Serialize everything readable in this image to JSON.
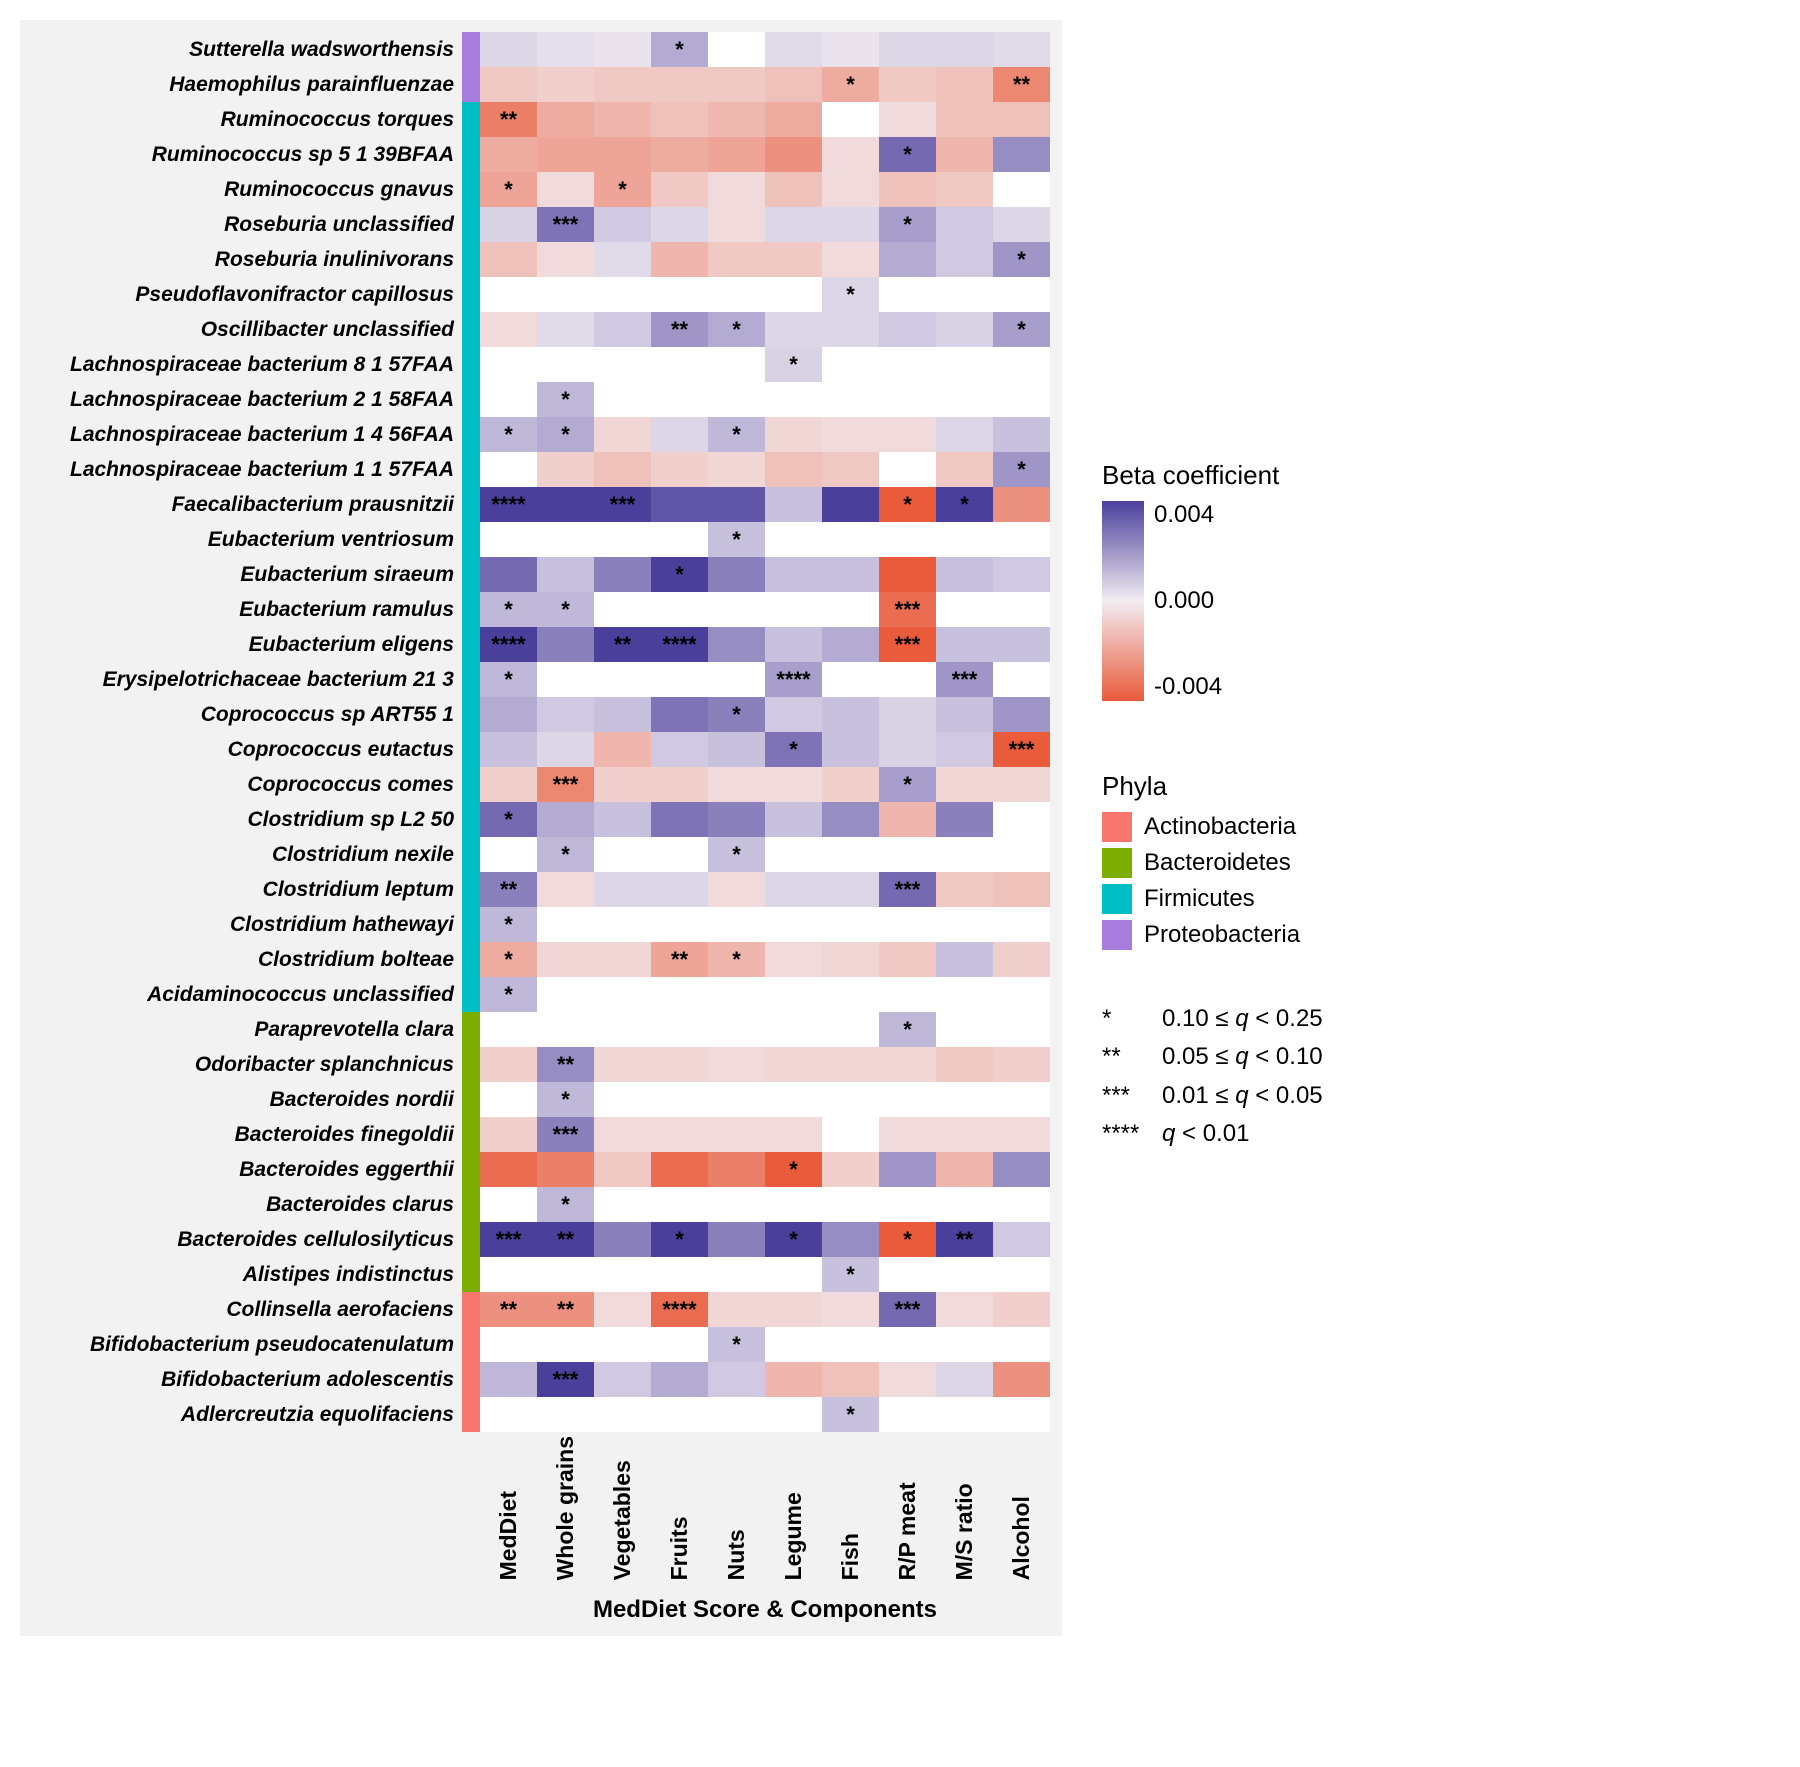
{
  "x_axis_title": "MedDiet Score & Components",
  "columns": [
    "MedDiet",
    "Whole grains",
    "Vegetables",
    "Fruits",
    "Nuts",
    "Legume",
    "Fish",
    "R/P meat",
    "M/S ratio",
    "Alcohol"
  ],
  "phyla": {
    "Actinobacteria": "#f8766d",
    "Bacteroidetes": "#7cae00",
    "Firmicutes": "#00bfc4",
    "Proteobacteria": "#a87cdd"
  },
  "beta_legend": {
    "title": "Beta coefficient",
    "min": -0.004,
    "mid": 0.0,
    "max": 0.004,
    "ticks": [
      "0.004",
      "0.000",
      "-0.004"
    ],
    "pos_color": "#4b3f9c",
    "zero_color": "#f2ecf2",
    "neg_color": "#e95b3a"
  },
  "phyla_legend_title": "Phyla",
  "sig_legend": [
    {
      "stars": "*",
      "text": "0.10 ≤ q < 0.25"
    },
    {
      "stars": "**",
      "text": "0.05 ≤ q < 0.10"
    },
    {
      "stars": "***",
      "text": "0.01 ≤ q < 0.05"
    },
    {
      "stars": "****",
      "text": "q < 0.01"
    }
  ],
  "rows": [
    {
      "label": "Sutterella wadsworthensis",
      "phylum": "Proteobacteria",
      "beta": [
        0.0005,
        0.0003,
        0.0002,
        0.0015,
        null,
        0.0004,
        0.0002,
        0.0005,
        0.0005,
        0.0004
      ],
      "sig": [
        "",
        "",
        "",
        "*",
        "",
        "",
        "",
        "",
        "",
        ""
      ]
    },
    {
      "label": "Haemophilus parainfluenzae",
      "phylum": "Proteobacteria",
      "beta": [
        -0.001,
        -0.0008,
        -0.001,
        -0.001,
        -0.001,
        -0.0012,
        -0.0018,
        -0.001,
        -0.0012,
        -0.0028
      ],
      "sig": [
        "",
        "",
        "",
        "",
        "",
        "",
        "*",
        "",
        "",
        "**"
      ]
    },
    {
      "label": "Ruminococcus torques",
      "phylum": "Firmicutes",
      "beta": [
        -0.003,
        -0.0018,
        -0.0015,
        -0.0012,
        -0.0014,
        -0.0018,
        null,
        -0.0005,
        -0.0012,
        -0.0012
      ],
      "sig": [
        "**",
        "",
        "",
        "",
        "",
        "",
        "",
        "",
        "",
        ""
      ]
    },
    {
      "label": "Ruminococcus sp 5 1 39BFAA",
      "phylum": "Firmicutes",
      "beta": [
        -0.0018,
        -0.002,
        -0.002,
        -0.0018,
        -0.002,
        -0.0025,
        -0.0005,
        0.003,
        -0.0015,
        0.0022
      ],
      "sig": [
        "",
        "",
        "",
        "",
        "",
        "",
        "",
        "*",
        "",
        ""
      ]
    },
    {
      "label": "Ruminococcus gnavus",
      "phylum": "Firmicutes",
      "beta": [
        -0.002,
        -0.0005,
        -0.002,
        -0.001,
        -0.0005,
        -0.0012,
        -0.0005,
        -0.0012,
        -0.001,
        null
      ],
      "sig": [
        "*",
        "",
        "*",
        "",
        "",
        "",
        "",
        "",
        "",
        ""
      ]
    },
    {
      "label": "Roseburia unclassified",
      "phylum": "Firmicutes",
      "beta": [
        0.0006,
        0.0028,
        0.0008,
        0.0005,
        -0.0005,
        0.0005,
        0.0005,
        0.0018,
        0.0008,
        0.0005
      ],
      "sig": [
        "",
        "***",
        "",
        "",
        "",
        "",
        "",
        "*",
        "",
        ""
      ]
    },
    {
      "label": "Roseburia inulinivorans",
      "phylum": "Firmicutes",
      "beta": [
        -0.0012,
        -0.0005,
        0.0004,
        -0.0015,
        -0.001,
        -0.001,
        -0.0005,
        0.0015,
        0.0008,
        0.002
      ],
      "sig": [
        "",
        "",
        "",
        "",
        "",
        "",
        "",
        "",
        "",
        "*"
      ]
    },
    {
      "label": "Pseudoflavonifractor capillosus",
      "phylum": "Firmicutes",
      "beta": [
        null,
        null,
        null,
        null,
        null,
        null,
        0.0005,
        null,
        null,
        null
      ],
      "sig": [
        "",
        "",
        "",
        "",
        "",
        "",
        "*",
        "",
        "",
        ""
      ]
    },
    {
      "label": "Oscillibacter unclassified",
      "phylum": "Firmicutes",
      "beta": [
        -0.0005,
        0.0004,
        0.0008,
        0.002,
        0.0015,
        0.0005,
        0.0005,
        0.0008,
        0.0006,
        0.0018
      ],
      "sig": [
        "",
        "",
        "",
        "**",
        "*",
        "",
        "",
        "",
        "",
        "*"
      ]
    },
    {
      "label": "Lachnospiraceae bacterium 8 1 57FAA",
      "phylum": "Firmicutes",
      "beta": [
        null,
        null,
        null,
        null,
        null,
        0.0006,
        null,
        null,
        null,
        null
      ],
      "sig": [
        "",
        "",
        "",
        "",
        "",
        "*",
        "",
        "",
        "",
        ""
      ]
    },
    {
      "label": "Lachnospiraceae bacterium 2 1 58FAA",
      "phylum": "Firmicutes",
      "beta": [
        null,
        0.0012,
        null,
        null,
        null,
        null,
        null,
        null,
        null,
        null
      ],
      "sig": [
        "",
        "*",
        "",
        "",
        "",
        "",
        "",
        "",
        "",
        ""
      ]
    },
    {
      "label": "Lachnospiraceae bacterium 1 4 56FAA",
      "phylum": "Firmicutes",
      "beta": [
        0.0012,
        0.0015,
        -0.0006,
        0.0005,
        0.0012,
        -0.0006,
        -0.0005,
        -0.0005,
        0.0005,
        0.001
      ],
      "sig": [
        "*",
        "*",
        "",
        "",
        "*",
        "",
        "",
        "",
        "",
        ""
      ]
    },
    {
      "label": "Lachnospiraceae bacterium 1 1 57FAA",
      "phylum": "Firmicutes",
      "beta": [
        null,
        -0.0008,
        -0.0012,
        -0.0008,
        -0.0006,
        -0.0012,
        -0.001,
        null,
        -0.001,
        0.002
      ],
      "sig": [
        "",
        "",
        "",
        "",
        "",
        "",
        "",
        "",
        "",
        "*"
      ]
    },
    {
      "label": "Faecalibacterium prausnitzii",
      "phylum": "Firmicutes",
      "beta": [
        0.0055,
        0.0045,
        0.005,
        0.0035,
        0.0035,
        0.001,
        0.004,
        -0.0045,
        0.0055,
        -0.0025
      ],
      "sig": [
        "****",
        "",
        "***",
        "",
        "",
        "",
        "",
        "*",
        "*",
        ""
      ]
    },
    {
      "label": "Eubacterium ventriosum",
      "phylum": "Firmicutes",
      "beta": [
        null,
        null,
        null,
        null,
        0.001,
        null,
        null,
        null,
        null,
        null
      ],
      "sig": [
        "",
        "",
        "",
        "",
        "*",
        "",
        "",
        "",
        "",
        ""
      ]
    },
    {
      "label": "Eubacterium siraeum",
      "phylum": "Firmicutes",
      "beta": [
        0.003,
        0.001,
        0.0025,
        0.0055,
        0.0025,
        0.001,
        0.001,
        -0.004,
        0.001,
        0.0008
      ],
      "sig": [
        "",
        "",
        "",
        "*",
        "",
        "",
        "",
        "",
        "",
        ""
      ]
    },
    {
      "label": "Eubacterium ramulus",
      "phylum": "Firmicutes",
      "beta": [
        0.0012,
        0.0012,
        null,
        null,
        null,
        null,
        null,
        -0.0035,
        null,
        null
      ],
      "sig": [
        "*",
        "*",
        "",
        "",
        "",
        "",
        "",
        "***",
        "",
        ""
      ]
    },
    {
      "label": "Eubacterium eligens",
      "phylum": "Firmicutes",
      "beta": [
        0.0055,
        0.0025,
        0.004,
        0.0055,
        0.0022,
        0.001,
        0.0015,
        -0.0045,
        0.001,
        0.001
      ],
      "sig": [
        "****",
        "",
        "**",
        "****",
        "",
        "",
        "",
        "***",
        "",
        ""
      ]
    },
    {
      "label": "Erysipelotrichaceae bacterium 21 3",
      "phylum": "Firmicutes",
      "beta": [
        0.0012,
        null,
        null,
        null,
        null,
        0.0018,
        null,
        null,
        0.002,
        null
      ],
      "sig": [
        "*",
        "",
        "",
        "",
        "",
        "****",
        "",
        "",
        "***",
        ""
      ]
    },
    {
      "label": "Coprococcus sp ART55 1",
      "phylum": "Firmicutes",
      "beta": [
        0.0015,
        0.0008,
        0.001,
        0.0028,
        0.0025,
        0.0008,
        0.001,
        0.0006,
        0.001,
        0.002
      ],
      "sig": [
        "",
        "",
        "",
        "",
        "*",
        "",
        "",
        "",
        "",
        ""
      ]
    },
    {
      "label": "Coprococcus eutactus",
      "phylum": "Firmicutes",
      "beta": [
        0.001,
        0.0005,
        -0.0015,
        0.0008,
        0.001,
        0.0028,
        0.001,
        0.0006,
        0.0008,
        -0.0045
      ],
      "sig": [
        "",
        "",
        "",
        "",
        "",
        "*",
        "",
        "",
        "",
        "***"
      ]
    },
    {
      "label": "Coprococcus comes",
      "phylum": "Firmicutes",
      "beta": [
        -0.0008,
        -0.0028,
        -0.0008,
        -0.0008,
        -0.0005,
        -0.0005,
        -0.0008,
        0.0018,
        -0.0006,
        -0.0006
      ],
      "sig": [
        "",
        "***",
        "",
        "",
        "",
        "",
        "",
        "*",
        "",
        ""
      ]
    },
    {
      "label": "Clostridium sp L2 50",
      "phylum": "Firmicutes",
      "beta": [
        0.003,
        0.0015,
        0.001,
        0.0028,
        0.0025,
        0.001,
        0.0022,
        -0.0015,
        0.0025,
        null
      ],
      "sig": [
        "*",
        "",
        "",
        "",
        "",
        "",
        "",
        "",
        "",
        ""
      ]
    },
    {
      "label": "Clostridium nexile",
      "phylum": "Firmicutes",
      "beta": [
        null,
        0.0012,
        null,
        null,
        0.001,
        null,
        null,
        null,
        null,
        null
      ],
      "sig": [
        "",
        "*",
        "",
        "",
        "*",
        "",
        "",
        "",
        "",
        ""
      ]
    },
    {
      "label": "Clostridium leptum",
      "phylum": "Firmicutes",
      "beta": [
        0.0025,
        -0.0005,
        0.0005,
        0.0005,
        -0.0005,
        0.0005,
        0.0005,
        0.003,
        -0.001,
        -0.0012
      ],
      "sig": [
        "**",
        "",
        "",
        "",
        "",
        "",
        "",
        "***",
        "",
        ""
      ]
    },
    {
      "label": "Clostridium hathewayi",
      "phylum": "Firmicutes",
      "beta": [
        0.0012,
        null,
        null,
        null,
        null,
        null,
        null,
        null,
        null,
        null
      ],
      "sig": [
        "*",
        "",
        "",
        "",
        "",
        "",
        "",
        "",
        "",
        ""
      ]
    },
    {
      "label": "Clostridium bolteae",
      "phylum": "Firmicutes",
      "beta": [
        -0.0018,
        -0.0006,
        -0.0006,
        -0.002,
        -0.0015,
        -0.0005,
        -0.0006,
        -0.001,
        0.001,
        -0.0008
      ],
      "sig": [
        "*",
        "",
        "",
        "**",
        "*",
        "",
        "",
        "",
        "",
        ""
      ]
    },
    {
      "label": "Acidaminococcus unclassified",
      "phylum": "Firmicutes",
      "beta": [
        0.0012,
        null,
        null,
        null,
        null,
        null,
        null,
        null,
        null,
        null
      ],
      "sig": [
        "*",
        "",
        "",
        "",
        "",
        "",
        "",
        "",
        "",
        ""
      ]
    },
    {
      "label": "Paraprevotella clara",
      "phylum": "Bacteroidetes",
      "beta": [
        null,
        null,
        null,
        null,
        null,
        null,
        null,
        0.0012,
        null,
        null
      ],
      "sig": [
        "",
        "",
        "",
        "",
        "",
        "",
        "",
        "*",
        "",
        ""
      ]
    },
    {
      "label": "Odoribacter splanchnicus",
      "phylum": "Bacteroidetes",
      "beta": [
        -0.0008,
        0.0022,
        -0.0006,
        -0.0006,
        -0.0005,
        -0.0006,
        -0.0006,
        -0.0006,
        -0.001,
        -0.0008
      ],
      "sig": [
        "",
        "**",
        "",
        "",
        "",
        "",
        "",
        "",
        "",
        ""
      ]
    },
    {
      "label": "Bacteroides nordii",
      "phylum": "Bacteroidetes",
      "beta": [
        null,
        0.0012,
        null,
        null,
        null,
        null,
        null,
        null,
        null,
        null
      ],
      "sig": [
        "",
        "*",
        "",
        "",
        "",
        "",
        "",
        "",
        "",
        ""
      ]
    },
    {
      "label": "Bacteroides finegoldii",
      "phylum": "Bacteroidetes",
      "beta": [
        -0.0008,
        0.0025,
        -0.0005,
        -0.0005,
        -0.0005,
        -0.0005,
        null,
        -0.0005,
        -0.0005,
        -0.0005
      ],
      "sig": [
        "",
        "***",
        "",
        "",
        "",
        "",
        "",
        "",
        "",
        ""
      ]
    },
    {
      "label": "Bacteroides eggerthii",
      "phylum": "Bacteroidetes",
      "beta": [
        -0.0035,
        -0.003,
        -0.001,
        -0.0035,
        -0.003,
        -0.0055,
        -0.0008,
        0.002,
        -0.0015,
        0.0022
      ],
      "sig": [
        "",
        "",
        "",
        "",
        "",
        "*",
        "",
        "",
        "",
        ""
      ]
    },
    {
      "label": "Bacteroides clarus",
      "phylum": "Bacteroidetes",
      "beta": [
        null,
        0.0012,
        null,
        null,
        null,
        null,
        null,
        null,
        null,
        null
      ],
      "sig": [
        "",
        "*",
        "",
        "",
        "",
        "",
        "",
        "",
        "",
        ""
      ]
    },
    {
      "label": "Bacteroides cellulosilyticus",
      "phylum": "Bacteroidetes",
      "beta": [
        0.005,
        0.005,
        0.0025,
        0.0045,
        0.0025,
        0.0045,
        0.0022,
        -0.004,
        0.005,
        0.0008
      ],
      "sig": [
        "***",
        "**",
        "",
        "*",
        "",
        "*",
        "",
        "*",
        "**",
        ""
      ]
    },
    {
      "label": "Alistipes indistinctus",
      "phylum": "Bacteroidetes",
      "beta": [
        null,
        null,
        null,
        null,
        null,
        null,
        0.001,
        null,
        null,
        null
      ],
      "sig": [
        "",
        "",
        "",
        "",
        "",
        "",
        "*",
        "",
        "",
        ""
      ]
    },
    {
      "label": "Collinsella aerofaciens",
      "phylum": "Actinobacteria",
      "beta": [
        -0.0025,
        -0.0025,
        -0.0005,
        -0.0035,
        -0.0006,
        -0.0006,
        -0.0005,
        0.003,
        -0.0005,
        -0.0008
      ],
      "sig": [
        "**",
        "**",
        "",
        "****",
        "",
        "",
        "",
        "***",
        "",
        ""
      ]
    },
    {
      "label": "Bifidobacterium pseudocatenulatum",
      "phylum": "Actinobacteria",
      "beta": [
        null,
        null,
        null,
        null,
        0.001,
        null,
        null,
        null,
        null,
        null
      ],
      "sig": [
        "",
        "",
        "",
        "",
        "*",
        "",
        "",
        "",
        "",
        ""
      ]
    },
    {
      "label": "Bifidobacterium adolescentis",
      "phylum": "Actinobacteria",
      "beta": [
        0.0012,
        0.004,
        0.0008,
        0.0015,
        0.0008,
        -0.0015,
        -0.0012,
        -0.0005,
        0.0005,
        -0.0025
      ],
      "sig": [
        "",
        "***",
        "",
        "",
        "",
        "",
        "",
        "",
        "",
        ""
      ]
    },
    {
      "label": "Adlercreutzia equolifaciens",
      "phylum": "Actinobacteria",
      "beta": [
        null,
        null,
        null,
        null,
        null,
        null,
        0.001,
        null,
        null,
        null
      ],
      "sig": [
        "",
        "",
        "",
        "",
        "",
        "",
        "*",
        "",
        "",
        ""
      ]
    }
  ]
}
